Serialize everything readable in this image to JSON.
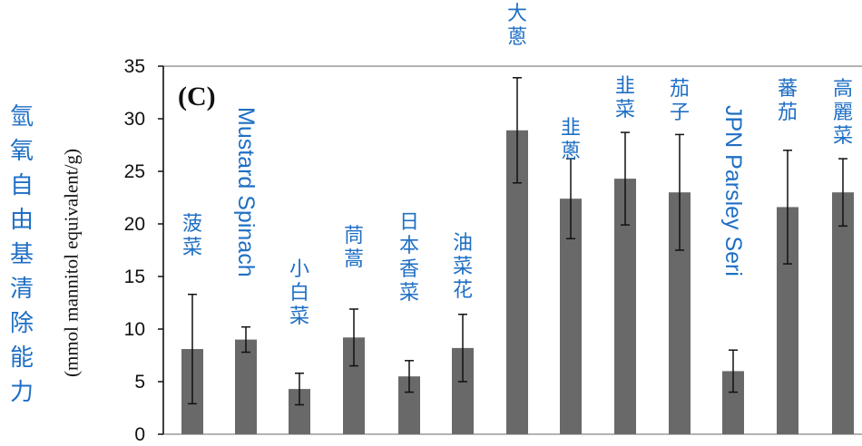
{
  "chart_data": {
    "type": "bar",
    "panel_label": "(C)",
    "ylabel_cjk": "氫氧自由基清除能力",
    "ylabel": "(mmol mannitol equivalent/g)",
    "ylim": [
      0,
      35
    ],
    "yticks": [
      0,
      5,
      10,
      15,
      20,
      25,
      30,
      35
    ],
    "grid": false,
    "categories": [
      "菠菜",
      "Mustard Spinach",
      "小白菜",
      "茼蒿",
      "日本香菜",
      "油菜花",
      "大蔥",
      "韭蔥",
      "韭菜",
      "茄子",
      "JPN Parsley Seri",
      "蕃茄",
      "高麗菜"
    ],
    "values": [
      8.1,
      9.0,
      4.3,
      9.2,
      5.5,
      8.2,
      28.9,
      22.4,
      24.3,
      23.0,
      6.0,
      21.6,
      23.0
    ],
    "errors": [
      5.2,
      1.2,
      1.5,
      2.7,
      1.5,
      3.2,
      5.0,
      3.8,
      4.4,
      5.5,
      2.0,
      5.4,
      3.2
    ],
    "colors": {
      "bar": "#696969",
      "label": "#1f6fc4",
      "axis": "#111111",
      "frame": "#9a9a9a"
    }
  }
}
